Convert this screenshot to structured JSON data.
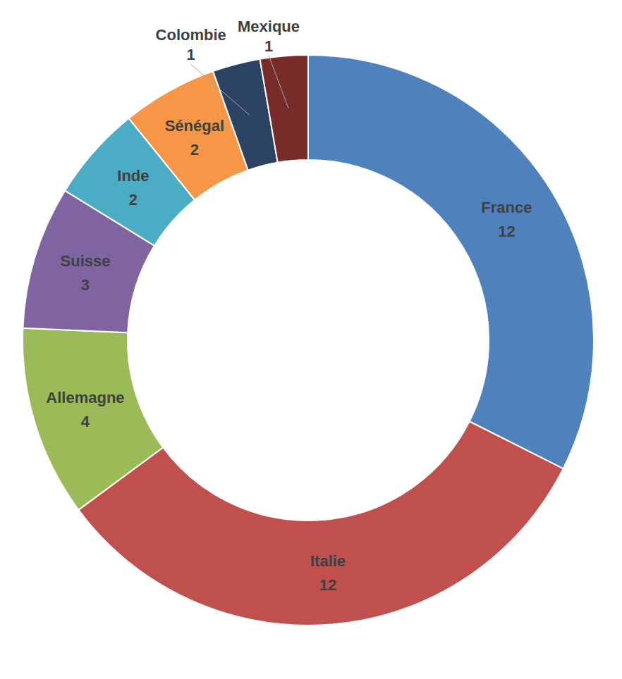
{
  "chart_data": {
    "type": "pie",
    "categories": [
      "France",
      "Italie",
      "Allemagne",
      "Suisse",
      "Inde",
      "Sénégal",
      "Colombie",
      "Mexique"
    ],
    "values": [
      12,
      12,
      4,
      3,
      2,
      2,
      1,
      1
    ],
    "colors": [
      "#4f81bd",
      "#c0504d",
      "#9bbb59",
      "#8064a2",
      "#4bacc6",
      "#f79646",
      "#2c4263",
      "#772c2a"
    ],
    "data_labels": true
  }
}
